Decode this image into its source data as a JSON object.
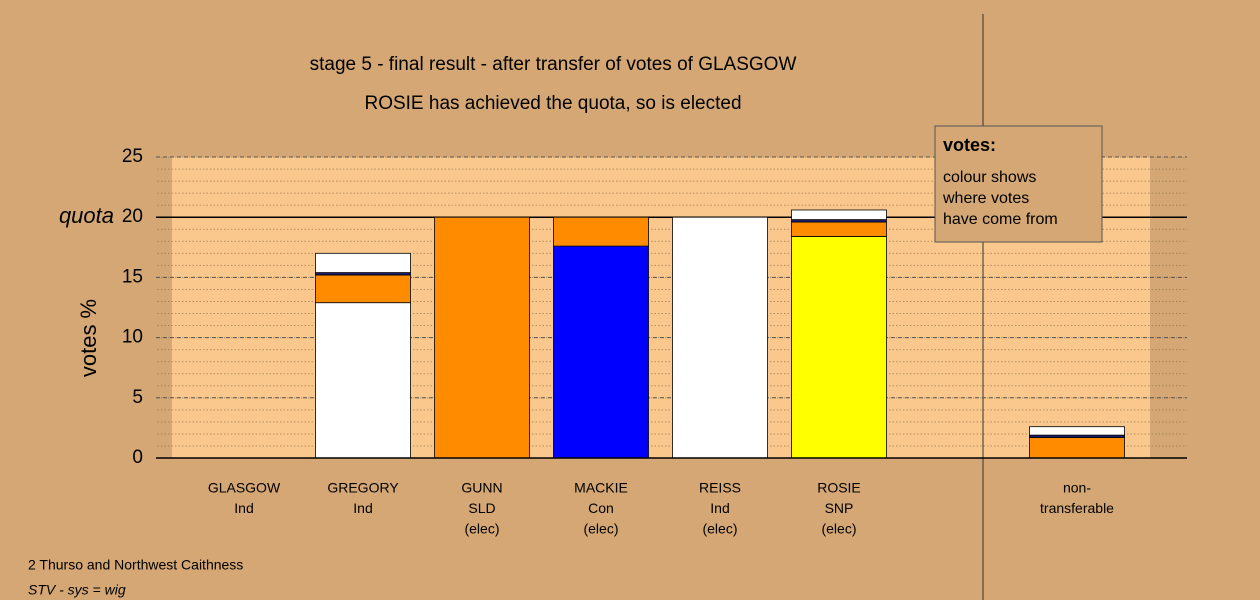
{
  "chart_data": {
    "type": "stacked_bar",
    "title": "stage 5 - final result - after transfer of votes of GLASGOW",
    "subtitle": "ROSIE has achieved the quota, so is elected",
    "y_label": "votes %",
    "quota_label": "quota",
    "quota": 20,
    "categories": [
      [
        "GLASGOW",
        "Ind"
      ],
      [
        "GREGORY",
        "Ind"
      ],
      [
        "GUNN",
        "SLD",
        "(elec)"
      ],
      [
        "MACKIE",
        "Con",
        "(elec)"
      ],
      [
        "REISS",
        "Ind",
        "(elec)"
      ],
      [
        "ROSIE",
        "SNP",
        "(elec)"
      ],
      [
        "non-",
        "transferable"
      ]
    ],
    "stacks": [
      [],
      [
        {
          "color": "#ffffff",
          "value": 12.9
        },
        {
          "color": "#ff8c00",
          "value": 2.3
        },
        {
          "color": "#1a1a6e",
          "value": 0.2
        },
        {
          "color": "#ffffff",
          "value": 1.6
        }
      ],
      [
        {
          "color": "#ff8c00",
          "value": 20
        }
      ],
      [
        {
          "color": "#0000ff",
          "value": 17.6
        },
        {
          "color": "#ff8c00",
          "value": 2.4
        }
      ],
      [
        {
          "color": "#ffffff",
          "value": 20
        }
      ],
      [
        {
          "color": "#ffff00",
          "value": 18.4
        },
        {
          "color": "#ff8c00",
          "value": 1.2
        },
        {
          "color": "#1a1a6e",
          "value": 0.2
        },
        {
          "color": "#ffffff",
          "value": 0.8
        }
      ],
      [
        {
          "color": "#ff8c00",
          "value": 1.7
        },
        {
          "color": "#1a1a6e",
          "value": 0.2
        },
        {
          "color": "#ffffff",
          "value": 0.7
        }
      ]
    ],
    "ylim": [
      0,
      25
    ],
    "yticks": [
      0,
      5,
      10,
      15,
      20,
      25
    ],
    "grid": true,
    "legend": {
      "title": "votes:",
      "lines": [
        "colour shows",
        "where votes",
        "have come from"
      ]
    },
    "footnotes": [
      "2 Thurso and Northwest Caithness",
      "STV - sys = wig"
    ]
  }
}
